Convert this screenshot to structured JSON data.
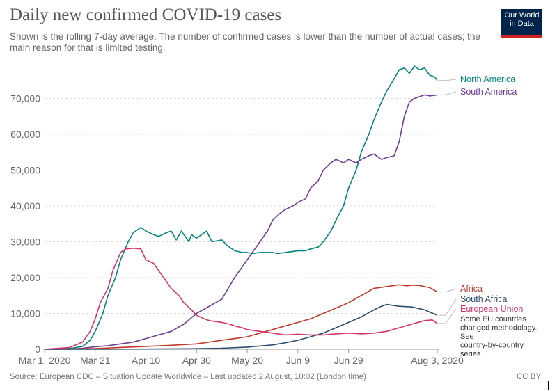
{
  "header": {
    "title": "Daily new confirmed COVID-19 cases",
    "subtitle": "Shown is the rolling 7-day average. The number of confirmed cases is lower than the number of actual cases; the main reason for that is limited testing.",
    "logo_line1": "Our World",
    "logo_line2": "in Data"
  },
  "footer": {
    "source": "Source: European CDC – Situation Update Worldwide – Last updated 2 August, 10:02 (London time)",
    "license": "CC BY"
  },
  "chart_data": {
    "type": "line",
    "title": "Daily new confirmed COVID-19 cases",
    "subtitle": "Shown is the rolling 7-day average. The number of confirmed cases is lower than the number of actual cases; the main reason for that is limited testing.",
    "x_unit": "days since Mar 1, 2020",
    "x_tick_labels": [
      "Mar 1, 2020",
      "Mar 21",
      "Apr 10",
      "Apr 30",
      "May 20",
      "Jun 9",
      "Jun 29",
      "Aug 3, 2020"
    ],
    "x_ticks": [
      0,
      20,
      40,
      60,
      80,
      100,
      120,
      155
    ],
    "y_ticks": [
      0,
      10000,
      20000,
      30000,
      40000,
      50000,
      60000,
      70000
    ],
    "y_tick_labels": [
      "0",
      "10,000",
      "20,000",
      "30,000",
      "40,000",
      "50,000",
      "60,000",
      "70,000"
    ],
    "xlim": [
      0,
      155
    ],
    "ylim": [
      0,
      80000
    ],
    "grid": "horizontal dashed",
    "legend": "right-end labels",
    "note": "Some EU countries changed methodology. See country-by-country series.",
    "series": [
      {
        "name": "North America",
        "color": "#00847e",
        "x": [
          0,
          10,
          15,
          18,
          20,
          23,
          25,
          28,
          30,
          33,
          35,
          38,
          40,
          43,
          45,
          48,
          50,
          52,
          54,
          55,
          57,
          58,
          60,
          62,
          64,
          66,
          70,
          72,
          75,
          78,
          80,
          82,
          85,
          88,
          90,
          92,
          95,
          100,
          103,
          105,
          108,
          110,
          113,
          115,
          118,
          120,
          123,
          125,
          128,
          130,
          133,
          135,
          138,
          140,
          142,
          144,
          146,
          148,
          150,
          152,
          154,
          155
        ],
        "y": [
          0,
          200,
          800,
          2500,
          5000,
          10000,
          15000,
          20000,
          25000,
          30000,
          32500,
          34000,
          33000,
          32000,
          31500,
          32500,
          33000,
          30500,
          33000,
          32000,
          30000,
          32000,
          31000,
          32000,
          33000,
          30000,
          30500,
          29000,
          27500,
          27000,
          27000,
          26700,
          27000,
          27000,
          27000,
          26700,
          27000,
          27500,
          27500,
          28000,
          28500,
          30000,
          33000,
          36000,
          40000,
          45000,
          50000,
          55000,
          60000,
          64000,
          69000,
          72000,
          75500,
          78000,
          78500,
          77000,
          79000,
          78000,
          78500,
          76500,
          76000,
          75000
        ]
      },
      {
        "name": "South America",
        "color": "#6d3e91",
        "x": [
          0,
          10,
          15,
          20,
          25,
          30,
          35,
          40,
          45,
          50,
          55,
          60,
          65,
          70,
          75,
          80,
          85,
          88,
          90,
          93,
          95,
          98,
          100,
          103,
          105,
          108,
          110,
          113,
          115,
          118,
          120,
          123,
          125,
          128,
          130,
          133,
          135,
          138,
          140,
          142,
          144,
          146,
          148,
          150,
          152,
          155
        ],
        "y": [
          0,
          0,
          300,
          700,
          1000,
          1500,
          2000,
          3000,
          4000,
          5000,
          7000,
          10000,
          12000,
          14000,
          20000,
          25000,
          30000,
          33000,
          36000,
          38000,
          39000,
          40000,
          41000,
          42000,
          45000,
          47000,
          50000,
          52000,
          53000,
          52000,
          53000,
          52000,
          53000,
          54000,
          54500,
          53000,
          53500,
          54000,
          58000,
          65000,
          69000,
          70000,
          70500,
          71000,
          70700,
          71000
        ]
      },
      {
        "name": "Africa",
        "color": "#c0392b",
        "x": [
          0,
          10,
          20,
          30,
          40,
          50,
          60,
          70,
          75,
          80,
          85,
          90,
          95,
          100,
          105,
          110,
          115,
          120,
          125,
          130,
          135,
          138,
          140,
          143,
          145,
          148,
          150,
          152,
          155
        ],
        "y": [
          0,
          50,
          200,
          500,
          800,
          1100,
          1500,
          2500,
          3000,
          3500,
          4500,
          5500,
          6500,
          7500,
          8500,
          10000,
          11500,
          13000,
          15000,
          17000,
          17500,
          17800,
          18000,
          17700,
          17900,
          17800,
          17500,
          17200,
          16000
        ]
      },
      {
        "name": "South Africa",
        "color": "#2c4d6e",
        "x": [
          0,
          20,
          40,
          60,
          70,
          80,
          90,
          95,
          100,
          105,
          110,
          115,
          120,
          125,
          130,
          133,
          135,
          138,
          140,
          145,
          150,
          155
        ],
        "y": [
          0,
          0,
          50,
          150,
          300,
          600,
          1200,
          1800,
          2500,
          3500,
          4500,
          6000,
          7500,
          9000,
          11000,
          12000,
          12500,
          12200,
          12000,
          11800,
          11000,
          9500
        ]
      },
      {
        "name": "European Union",
        "color": "#d6336c",
        "x": [
          0,
          10,
          15,
          18,
          20,
          22,
          25,
          27,
          30,
          32,
          35,
          38,
          40,
          43,
          45,
          48,
          50,
          53,
          55,
          58,
          60,
          63,
          65,
          70,
          73,
          75,
          78,
          80,
          85,
          90,
          95,
          100,
          105,
          110,
          115,
          120,
          125,
          130,
          135,
          140,
          145,
          150,
          153,
          155
        ],
        "y": [
          0,
          500,
          2000,
          5000,
          8500,
          13000,
          17000,
          22000,
          27000,
          28000,
          28200,
          28000,
          25000,
          24000,
          22000,
          19000,
          17000,
          15000,
          13000,
          11000,
          9500,
          8500,
          8000,
          7500,
          7000,
          6500,
          6000,
          5500,
          5000,
          4500,
          4000,
          4200,
          4000,
          4000,
          4300,
          4500,
          4300,
          4500,
          5000,
          6000,
          7000,
          8000,
          8200,
          7200
        ]
      }
    ]
  }
}
